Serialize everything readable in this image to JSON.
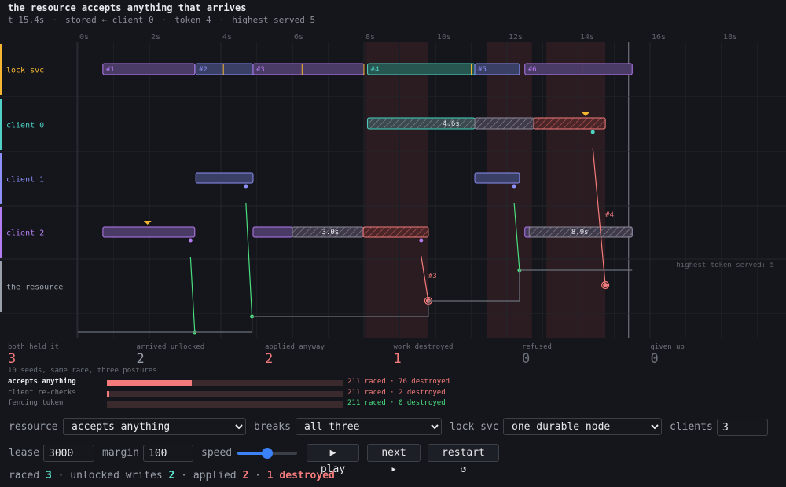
{
  "header": {
    "title": "the resource accepts anything that arrives",
    "t": "t 15.4s",
    "stored": "stored ← client 0",
    "token": "token 4",
    "highest": "highest served 5"
  },
  "timeline": {
    "axis_ticks": [
      "0s",
      "2s",
      "4s",
      "6s",
      "8s",
      "10s",
      "12s",
      "14s",
      "16s",
      "18s"
    ],
    "lanes": [
      {
        "label": "lock svc",
        "color": "#f5b731"
      },
      {
        "label": "client 0",
        "color": "#4fd1c5"
      },
      {
        "label": "client 1",
        "color": "#8b8ff7"
      },
      {
        "label": "client 2",
        "color": "#b57cf2"
      },
      {
        "label": "the resource",
        "color": "#9aa0aa"
      }
    ],
    "colors": {
      "lock": "#b57cf2",
      "lock_client1": "#8b8ff7",
      "lock_client0": "#4fd1c5",
      "danger": "#f47b7b",
      "ok": "#4ade80",
      "warn": "#f5b731"
    },
    "lease_labels": [
      "#1",
      "#2",
      "#3",
      "#4",
      "#5",
      "#6"
    ],
    "pause_labels": [
      "4.6s",
      "3.0s",
      "8.9s"
    ],
    "write_labels": [
      "#3",
      "#4"
    ],
    "highest_note": "highest token served: 5"
  },
  "stats": [
    {
      "label": "both held it",
      "value": "3",
      "color": "#f47b7b"
    },
    {
      "label": "arrived unlocked",
      "value": "2",
      "color": "#9aa0aa"
    },
    {
      "label": "applied anyway",
      "value": "2",
      "color": "#f47b7b"
    },
    {
      "label": "work destroyed",
      "value": "1",
      "color": "#f47b7b"
    },
    {
      "label": "refused",
      "value": "0",
      "color": "#6b707a"
    },
    {
      "label": "given up",
      "value": "0",
      "color": "#6b707a"
    }
  ],
  "seeds_note": "10 seeds, same race, three postures",
  "breakdown": [
    {
      "name": "accepts anything",
      "fraction": 0.36,
      "result": "211 raced · 76 destroyed",
      "color": "#f47b7b",
      "active": true
    },
    {
      "name": "client re-checks",
      "fraction": 0.01,
      "result": "211 raced · 2 destroyed",
      "color": "#f47b7b",
      "active": false
    },
    {
      "name": "fencing token",
      "fraction": 0.0,
      "result": "211 raced · 0 destroyed",
      "color": "#4ade80",
      "active": false
    }
  ],
  "controls": {
    "resource_label": "resource",
    "resource_value": "accepts anything",
    "breaks_label": "breaks",
    "breaks_value": "all three",
    "locksvc_label": "lock svc",
    "locksvc_value": "one durable node",
    "clients_label": "clients",
    "clients_value": "3",
    "lease_label": "lease",
    "lease_value": "3000",
    "margin_label": "margin",
    "margin_value": "100",
    "speed_label": "speed",
    "speed_level": 0.5,
    "play_label": "▶ play",
    "next_label": "next ▸",
    "restart_label": "restart ↺"
  },
  "summary": {
    "raced_label": "raced",
    "raced": "3",
    "unlocked_label": "unlocked writes",
    "unlocked": "2",
    "applied_label": "applied",
    "applied": "2",
    "destroyed": "1 destroyed"
  }
}
